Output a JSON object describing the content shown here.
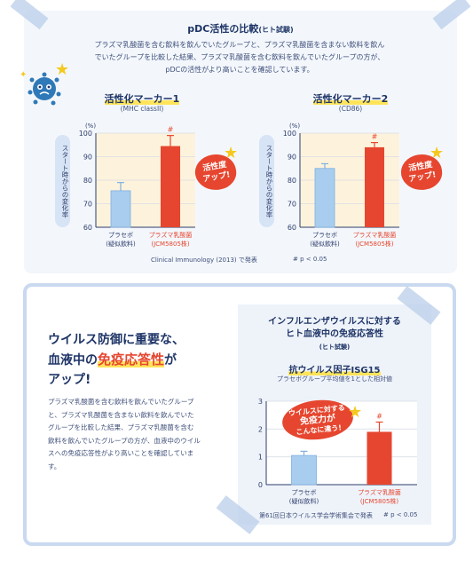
{
  "colors": {
    "placebo": "#a9cdee",
    "placebo_edge": "#7fb0e0",
    "lacto": "#e6462f",
    "accent_yellow": "#ffe45a",
    "navy": "#1f3567",
    "virus": "#2f79b8"
  },
  "icons": {
    "mascot": "virus-mascot-icon",
    "star": "star-icon"
  },
  "section1": {
    "title": "pDC活性の比較",
    "title_note": "(ヒト試験)",
    "intro": [
      "プラズマ乳酸菌を含む飲料を飲んでいたグループと、プラズマ乳酸菌を含まない飲料を飲ん",
      "でいたグループを比較した結果、プラズマ乳酸菌を含む飲料を飲んでいたグループの方が、",
      "pDCの活性がより高いことを確認しています。"
    ],
    "y_pill": "スタート時からの変化率",
    "badge": [
      "活性度",
      "アップ!"
    ],
    "source": "Clinical Immunology (2013) で発表",
    "significance": "# p < 0.05"
  },
  "section2": {
    "headline": [
      "ウイルス防御に重要な、",
      "血液中の",
      "免疫応答性",
      "が",
      "アップ!"
    ],
    "body": [
      "プラズマ乳酸菌を含む飲料を飲んでいたグループ",
      "と、プラズマ乳酸菌を含まない飲料を飲んでいた",
      "グループを比較した結果、プラズマ乳酸菌を含む",
      "飲料を飲んでいたグループの方が、血液中のウイル",
      "スへの免疫応答性がより高いことを確認していま",
      "す。"
    ],
    "panel_title": [
      "インフルエンザウイルスに対する",
      "ヒト血液中の免疫応答性"
    ],
    "panel_title_note": "(ヒト試験)",
    "speech": [
      "ウイルスに対する",
      "免疫力が",
      "こんなに違う!"
    ],
    "source": "第61回日本ウイルス学会学術集会で発表",
    "significance": "# p < 0.05"
  },
  "chart_data": [
    {
      "type": "bar",
      "title": "活性化マーカー1",
      "subtitle": "(MHC classII)",
      "unit": "(%)",
      "ylabel": "スタート時からの変化率",
      "ylim": [
        60,
        100
      ],
      "yticks": [
        60,
        70,
        80,
        90,
        100
      ],
      "categories": [
        [
          "プラセボ",
          "(疑似飲料)"
        ],
        [
          "プラズマ乳酸菌",
          "(JCM5805株)"
        ]
      ],
      "values": [
        75.5,
        94.5
      ],
      "errors": [
        3.5,
        4.5
      ],
      "marks": [
        "",
        "#"
      ]
    },
    {
      "type": "bar",
      "title": "活性化マーカー2",
      "subtitle": "(CD86)",
      "unit": "(%)",
      "ylabel": "スタート時からの変化率",
      "ylim": [
        60,
        100
      ],
      "yticks": [
        60,
        70,
        80,
        90,
        100
      ],
      "categories": [
        [
          "プラセボ",
          "(疑似飲料)"
        ],
        [
          "プラズマ乳酸菌",
          "(JCM5805株)"
        ]
      ],
      "values": [
        85,
        94
      ],
      "errors": [
        2,
        2
      ],
      "marks": [
        "",
        "#"
      ]
    },
    {
      "type": "bar",
      "title": "抗ウイルス因子ISG15",
      "subtitle": "プラセボグループ平均値を1とした相対値",
      "ylim": [
        0,
        3
      ],
      "yticks": [
        0,
        1,
        2,
        3
      ],
      "categories": [
        [
          "プラセボ",
          "(疑似飲料)"
        ],
        [
          "プラズマ乳酸菌",
          "(JCM5805株)"
        ]
      ],
      "values": [
        1.05,
        1.9
      ],
      "errors": [
        0.15,
        0.35
      ],
      "marks": [
        "",
        "#"
      ]
    }
  ]
}
